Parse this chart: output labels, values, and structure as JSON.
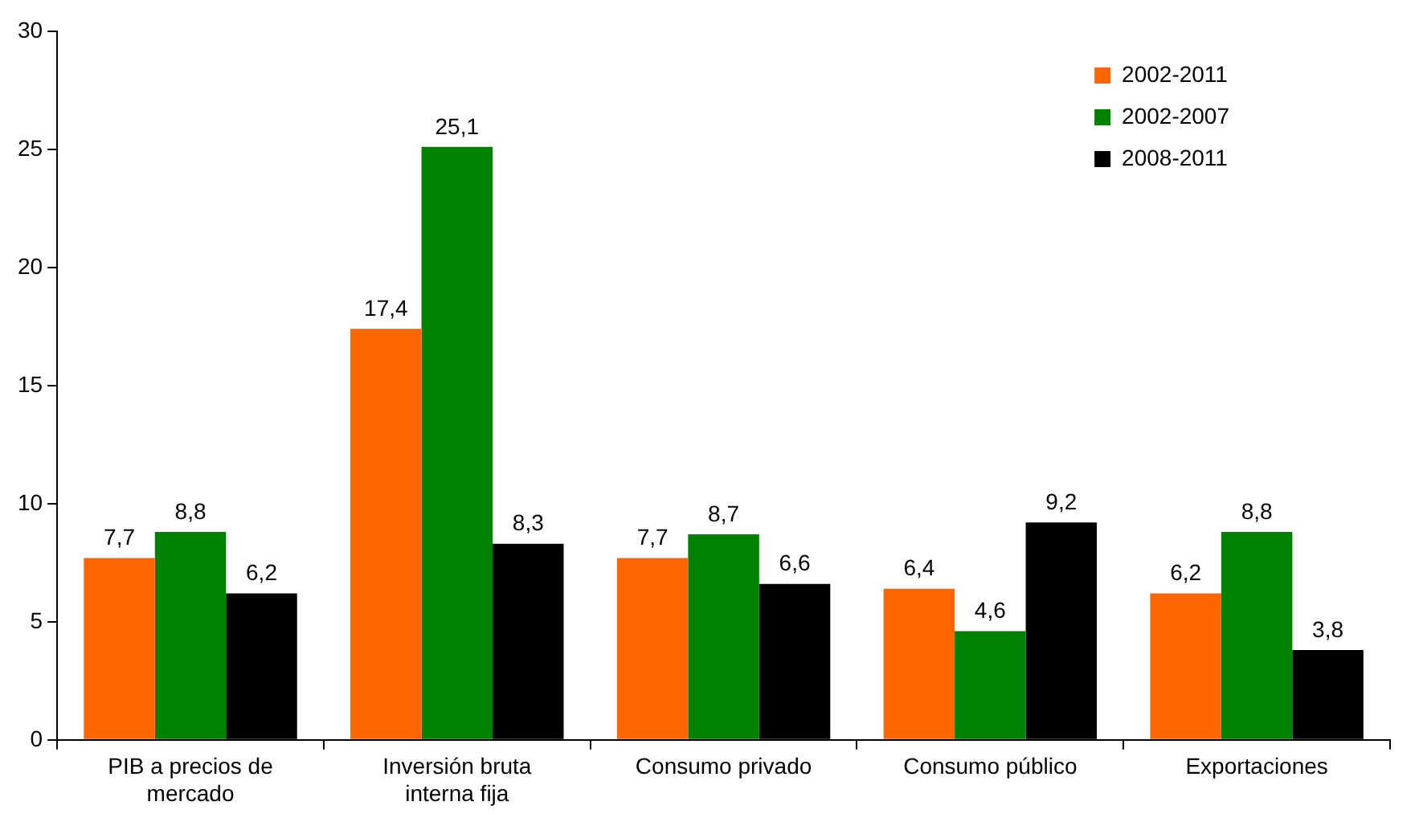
{
  "chart_data": {
    "type": "bar",
    "categories": [
      "PIB a precios de mercado",
      "Inversión bruta interna fija",
      "Consumo privado",
      "Consumo público",
      "Exportaciones"
    ],
    "series": [
      {
        "name": "2002-2011",
        "color": "#ff6600",
        "values": [
          7.7,
          17.4,
          7.7,
          6.4,
          6.2
        ],
        "value_labels": [
          "7,7",
          "17,4",
          "7,7",
          "6,4",
          "6,2"
        ]
      },
      {
        "name": "2002-2007",
        "color": "#008000",
        "values": [
          8.8,
          25.1,
          8.7,
          4.6,
          8.8
        ],
        "value_labels": [
          "8,8",
          "25,1",
          "8,7",
          "4,6",
          "8,8"
        ]
      },
      {
        "name": "2008-2011",
        "color": "#000000",
        "values": [
          6.2,
          8.3,
          6.6,
          9.2,
          3.8
        ],
        "value_labels": [
          "6,2",
          "8,3",
          "6,6",
          "9,2",
          "3,8"
        ]
      }
    ],
    "ylim": [
      0,
      30
    ],
    "yticks": [
      0,
      5,
      10,
      15,
      20,
      25,
      30
    ],
    "grid": false,
    "legend": "top right"
  }
}
